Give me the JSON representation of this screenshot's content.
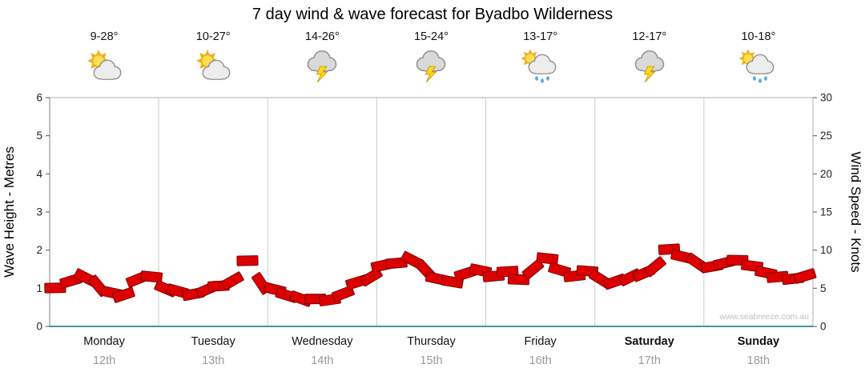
{
  "title": "7 day wind & wave forecast for Byadbo Wilderness",
  "watermark": "www.seabreeze.com.au",
  "days": [
    {
      "name": "Monday",
      "date": "12th",
      "temp": "9-28°",
      "icon": "partly-cloudy",
      "bold": false
    },
    {
      "name": "Tuesday",
      "date": "13th",
      "temp": "10-27°",
      "icon": "partly-cloudy",
      "bold": false
    },
    {
      "name": "Wednesday",
      "date": "14th",
      "temp": "14-26°",
      "icon": "thunderstorm",
      "bold": false
    },
    {
      "name": "Thursday",
      "date": "15th",
      "temp": "15-24°",
      "icon": "thunderstorm",
      "bold": false
    },
    {
      "name": "Friday",
      "date": "16th",
      "temp": "13-17°",
      "icon": "sun-showers",
      "bold": false
    },
    {
      "name": "Saturday",
      "date": "17th",
      "temp": "12-17°",
      "icon": "thunderstorm",
      "bold": true
    },
    {
      "name": "Sunday",
      "date": "18th",
      "temp": "10-18°",
      "icon": "sun-showers",
      "bold": true
    }
  ],
  "chart_data": {
    "type": "area",
    "title": "7 day wind & wave forecast for Byadbo Wilderness",
    "categories": [
      "Monday 12th",
      "Tuesday 13th",
      "Wednesday 14th",
      "Thursday 15th",
      "Friday 16th",
      "Saturday 17th",
      "Sunday 18th"
    ],
    "ylabel_left": "Wave Height - Metres",
    "ylabel_right": "Wind Speed - Knots",
    "ylim_left": [
      0,
      6
    ],
    "ylim_right": [
      0,
      30
    ],
    "yticks_left": [
      0,
      1,
      2,
      3,
      4,
      5,
      6
    ],
    "yticks_right": [
      0,
      5,
      10,
      15,
      20,
      25,
      30
    ],
    "grid": "vertical-day-separators",
    "legend": "none",
    "samples_per_day": 8,
    "series": [
      {
        "name": "Wind Speed (knots)",
        "values": [
          5.2,
          6.0,
          6.6,
          5.4,
          4.2,
          3.9,
          6.3,
          6.7,
          5.0,
          4.4,
          4.0,
          4.6,
          5.2,
          6.0,
          8.6,
          5.6,
          4.6,
          4.0,
          3.4,
          3.8,
          3.3,
          4.4,
          5.6,
          6.6,
          7.8,
          8.4,
          8.6,
          7.6,
          6.4,
          5.6,
          6.8,
          7.4,
          6.6,
          7.0,
          6.2,
          7.4,
          8.8,
          7.6,
          6.6,
          7.2,
          6.4,
          5.8,
          6.6,
          7.2,
          8.0,
          10.0,
          9.2,
          8.4,
          7.6,
          8.2,
          8.6,
          7.8,
          7.0,
          6.6,
          6.2,
          6.4
        ]
      }
    ],
    "band_color": "#dd0000",
    "band_stroke": "#7e0000"
  },
  "colors": {
    "accent_red": "#dd0000",
    "axis_teal": "#0e7474",
    "grid_gray": "#cdcdcd",
    "border_gray": "#b0b0b0",
    "date_gray": "#999999",
    "watermark_gray": "#bfbfbf"
  }
}
